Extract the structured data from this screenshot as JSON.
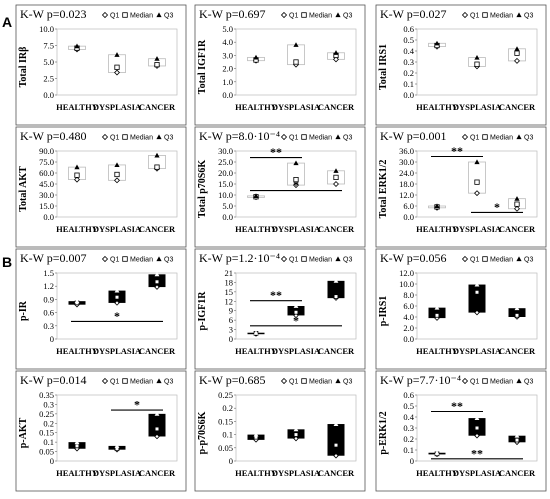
{
  "section_labels": [
    "A",
    "B"
  ],
  "legend": [
    "Q1",
    "Median",
    "Q3"
  ],
  "categories": [
    "HEALTHY",
    "DYSPLASIA",
    "CANCER"
  ],
  "chart_data": [
    {
      "type": "box",
      "pvalue": "K-W p=0.023",
      "ylabel": "Total IRβ",
      "ylim": [
        0,
        10
      ],
      "yticks": [
        "0.0",
        "2.5",
        "5.0",
        "7.5",
        "10.0"
      ],
      "filled": false,
      "boxes": [
        {
          "q1": 6.9,
          "median": 7.1,
          "q3": 7.4
        },
        {
          "q1": 3.4,
          "median": 4.2,
          "q3": 6.1
        },
        {
          "q1": 4.4,
          "median": 4.6,
          "q3": 5.5
        }
      ],
      "significance": []
    },
    {
      "type": "box",
      "pvalue": "K-W p=0.697",
      "ylabel": "Total IGF1R",
      "ylim": [
        0,
        5
      ],
      "yticks": [
        "0.0",
        "1.0",
        "2.0",
        "3.0",
        "4.0",
        "5.0"
      ],
      "filled": false,
      "boxes": [
        {
          "q1": 2.6,
          "median": 2.65,
          "q3": 2.85
        },
        {
          "q1": 2.3,
          "median": 2.5,
          "q3": 3.8
        },
        {
          "q1": 2.7,
          "median": 3.0,
          "q3": 3.2
        }
      ],
      "significance": []
    },
    {
      "type": "box",
      "pvalue": "K-W p=0.027",
      "ylabel": "Total IRS1",
      "ylim": [
        0,
        0.6
      ],
      "yticks": [
        "0.0",
        "0.1",
        "0.2",
        "0.3",
        "0.4",
        "0.5",
        "0.6"
      ],
      "filled": false,
      "boxes": [
        {
          "q1": 0.44,
          "median": 0.45,
          "q3": 0.47
        },
        {
          "q1": 0.26,
          "median": 0.28,
          "q3": 0.34
        },
        {
          "q1": 0.31,
          "median": 0.38,
          "q3": 0.42
        }
      ],
      "significance": []
    },
    {
      "type": "box",
      "pvalue": "K-W p=0.480",
      "ylabel": "Total AKT",
      "ylim": [
        0,
        90
      ],
      "yticks": [
        "0.0",
        "15.0",
        "30.0",
        "45.0",
        "60.0",
        "75.0",
        "90.0"
      ],
      "filled": false,
      "boxes": [
        {
          "q1": 51,
          "median": 57,
          "q3": 68
        },
        {
          "q1": 50,
          "median": 58,
          "q3": 71
        },
        {
          "q1": 66,
          "median": 68,
          "q3": 84
        }
      ],
      "significance": []
    },
    {
      "type": "box",
      "pvalue": "K-W p=8.0·10⁻⁴",
      "ylabel": "Total p70S6K",
      "ylim": [
        0,
        30
      ],
      "yticks": [
        "0.0",
        "5.0",
        "10.0",
        "15.0",
        "20.0",
        "25.0",
        "30.0"
      ],
      "filled": false,
      "boxes": [
        {
          "q1": 9.0,
          "median": 9.2,
          "q3": 9.6
        },
        {
          "q1": 14.5,
          "median": 17.0,
          "q3": 24.5
        },
        {
          "q1": 15.0,
          "median": 18.0,
          "q3": 21.0
        }
      ],
      "significance": [
        {
          "label": "**",
          "from": 0,
          "to": 1,
          "y": 27
        },
        {
          "label": "*",
          "from": 0,
          "to": 2,
          "y": 12
        }
      ]
    },
    {
      "type": "box",
      "pvalue": "K-W p=0.001",
      "ylabel": "Total ERK1/2",
      "ylim": [
        0,
        36
      ],
      "yticks": [
        "0.0",
        "6.0",
        "12.0",
        "18.0",
        "24.0",
        "30.0",
        "36.0"
      ],
      "filled": false,
      "boxes": [
        {
          "q1": 5.0,
          "median": 5.5,
          "q3": 6.0
        },
        {
          "q1": 13.0,
          "median": 19.0,
          "q3": 30.0
        },
        {
          "q1": 4.5,
          "median": 7.0,
          "q3": 10.0
        }
      ],
      "significance": [
        {
          "label": "**",
          "from": 0,
          "to": 1,
          "y": 33
        },
        {
          "label": "*",
          "from": 1,
          "to": 2,
          "y": 2.5
        }
      ]
    },
    {
      "type": "box",
      "pvalue": "K-W p=0.007",
      "ylabel": "p-IR",
      "ylim": [
        0,
        1.5
      ],
      "yticks": [
        "0",
        "0.3",
        "0.6",
        "0.9",
        "1.2",
        "1.5"
      ],
      "filled": true,
      "boxes": [
        {
          "q1": 0.78,
          "median": 0.82,
          "q3": 0.86
        },
        {
          "q1": 0.82,
          "median": 0.95,
          "q3": 1.1
        },
        {
          "q1": 1.18,
          "median": 1.3,
          "q3": 1.47
        }
      ],
      "significance": [
        {
          "label": "*",
          "from": 0,
          "to": 2,
          "y": 0.4
        }
      ]
    },
    {
      "type": "box",
      "pvalue": "K-W p=1.2·10⁻⁴",
      "ylabel": "p-IGF1R",
      "ylim": [
        0,
        21
      ],
      "yticks": [
        "0",
        "3",
        "6",
        "9",
        "12",
        "15",
        "18",
        "21"
      ],
      "filled": true,
      "boxes": [
        {
          "q1": 1.6,
          "median": 1.8,
          "q3": 2.0
        },
        {
          "q1": 7.5,
          "median": 8.5,
          "q3": 10.5
        },
        {
          "q1": 13.0,
          "median": 13.5,
          "q3": 18.5
        }
      ],
      "significance": [
        {
          "label": "**",
          "from": 0,
          "to": 1,
          "y": 12.2
        },
        {
          "label": "*",
          "from": 0,
          "to": 2,
          "y": 4.2
        }
      ]
    },
    {
      "type": "box",
      "pvalue": "K-W p=0.056",
      "ylabel": "p-IRS1",
      "ylim": [
        0,
        12
      ],
      "yticks": [
        "0.0",
        "2.0",
        "4.0",
        "6.0",
        "8.0",
        "10.0",
        "12.0"
      ],
      "filled": true,
      "boxes": [
        {
          "q1": 3.8,
          "median": 4.3,
          "q3": 5.7
        },
        {
          "q1": 4.8,
          "median": 8.5,
          "q3": 9.9
        },
        {
          "q1": 4.0,
          "median": 4.3,
          "q3": 5.6
        }
      ],
      "significance": []
    },
    {
      "type": "box",
      "pvalue": "K-W p=0.014",
      "ylabel": "p-AKT",
      "ylim": [
        0,
        0.35
      ],
      "yticks": [
        "0",
        "0.05",
        "0.1",
        "0.15",
        "0.2",
        "0.25",
        "0.3",
        "0.35"
      ],
      "filled": true,
      "boxes": [
        {
          "q1": 0.065,
          "median": 0.08,
          "q3": 0.1
        },
        {
          "q1": 0.06,
          "median": 0.065,
          "q3": 0.08
        },
        {
          "q1": 0.13,
          "median": 0.17,
          "q3": 0.25
        }
      ],
      "significance": [
        {
          "label": "*",
          "from": 1,
          "to": 2,
          "y": 0.27
        }
      ]
    },
    {
      "type": "box",
      "pvalue": "K-W p=0.685",
      "ylabel": "p-p70S6K",
      "ylim": [
        0,
        0.25
      ],
      "yticks": [
        "0",
        "0.05",
        "0.1",
        "0.15",
        "0.2",
        "0.25"
      ],
      "filled": true,
      "boxes": [
        {
          "q1": 0.08,
          "median": 0.09,
          "q3": 0.1
        },
        {
          "q1": 0.085,
          "median": 0.1,
          "q3": 0.12
        },
        {
          "q1": 0.02,
          "median": 0.06,
          "q3": 0.14
        }
      ],
      "significance": []
    },
    {
      "type": "box",
      "pvalue": "K-W p=7.7·10⁻⁴",
      "ylabel": "p-ERK1/2",
      "ylim": [
        0,
        0.6
      ],
      "yticks": [
        "0",
        "0.1",
        "0.2",
        "0.3",
        "0.4",
        "0.5",
        "0.6"
      ],
      "filled": true,
      "boxes": [
        {
          "q1": 0.06,
          "median": 0.065,
          "q3": 0.075
        },
        {
          "q1": 0.23,
          "median": 0.3,
          "q3": 0.39
        },
        {
          "q1": 0.17,
          "median": 0.19,
          "q3": 0.23
        }
      ],
      "significance": [
        {
          "label": "**",
          "from": 0,
          "to": 1,
          "y": 0.45
        },
        {
          "label": "**",
          "from": 0,
          "to": 2,
          "y": 0.02
        }
      ]
    }
  ]
}
